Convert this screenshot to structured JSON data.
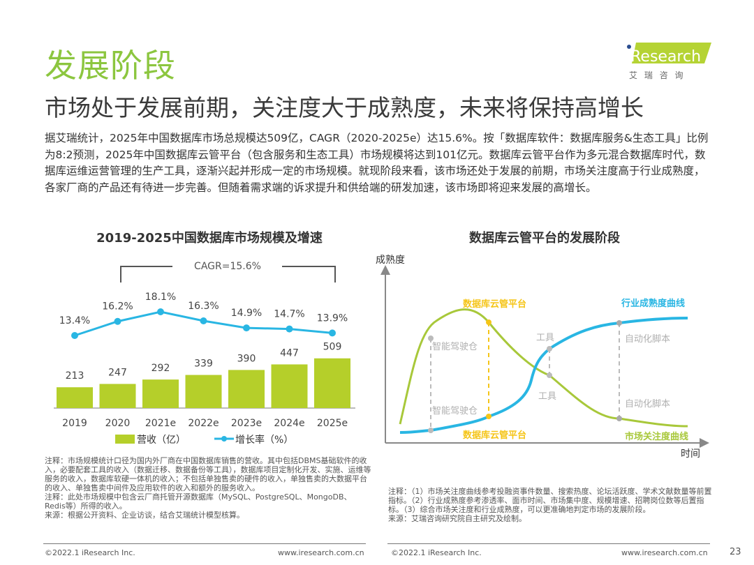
{
  "header": {
    "title": "发展阶段",
    "subtitle": "市场处于发展前期，关注度大于成熟度，未来将保持高增长",
    "logo_text": "iResearch",
    "logo_cn": "艾 瑞 咨 询",
    "brand_color": "#8cc63f"
  },
  "intro": "据艾瑞统计，2025年中国数据库市场总规模达509亿，CAGR（2020-2025e）达15.6%。按「数据库软件：数据库服务&生态工具」比例为8:2预测，2025年中国数据库云管平台（包含服务和生态工具）市场规模将达到101亿元。数据库云管平台作为多元混合数据库时代，数据库运维运营管理的生产工具，逐渐兴起并形成一定的市场规模。就现阶段来看，该市场还处于发展的前期，市场关注度高于行业成熟度，各家厂商的产品还有待进一步完善。但随着需求端的诉求提升和供给端的研发加速，该市场即将迎来发展的高增长。",
  "chart_data": [
    {
      "type": "bar",
      "title": "2019-2025中国数据库市场规模及增速",
      "categories": [
        "2019",
        "2020",
        "2021e",
        "2022e",
        "2023e",
        "2024e",
        "2025e"
      ],
      "series": [
        {
          "name": "营收（亿）",
          "type": "bar",
          "color": "#b5cf2a",
          "values": [
            213,
            247,
            292,
            339,
            390,
            447,
            509
          ],
          "labels": [
            "213",
            "247",
            "292",
            "339",
            "390",
            "447",
            "509"
          ]
        },
        {
          "name": "增长率（%）",
          "type": "line",
          "color": "#29b6e3",
          "values": [
            13.4,
            16.2,
            18.1,
            16.3,
            14.9,
            14.7,
            13.9
          ],
          "labels": [
            "13.4%",
            "16.2%",
            "18.1%",
            "16.3%",
            "14.9%",
            "14.7%",
            "13.9%"
          ]
        }
      ],
      "annotation": "CAGR=15.6%",
      "annotation_span": [
        "2020",
        "2025e"
      ],
      "legend_position": "bottom",
      "grid": false
    },
    {
      "type": "line",
      "title": "数据库云管平台的发展阶段",
      "ylabel": "成熟度",
      "xlabel": "时间",
      "series": [
        {
          "name": "市场关注度曲线",
          "color": "#a8c83a"
        },
        {
          "name": "行业成熟度曲线",
          "color": "#29b6e3"
        }
      ],
      "stages": [
        {
          "name": "智能驾驶仓",
          "upper_label": "智能驾驶仓",
          "lower_label": "智能驾驶仓"
        },
        {
          "name": "数据库云管平台",
          "upper_label": "数据库云管平台",
          "lower_label": "数据库云管平台",
          "color": "#f5c518"
        },
        {
          "name": "工具",
          "upper_label": "工具",
          "lower_label": "工具"
        },
        {
          "name": "自动化脚本",
          "upper_label": "自动化脚本",
          "lower_label": "自动化脚本"
        }
      ]
    }
  ],
  "notes": {
    "left": [
      "注释：市场规模统计口径为国内外厂商在中国数据库销售的营收。其中包括DBMS基础软件的收入，必要配套工具的收入（数据迁移、数据备份等工具），数据库项目定制化开发、实施、运维等服务的收入，数据库软硬一体机的收入；不包括单独售卖的硬件的收入，单独售卖的大数据平台的收入、单独售卖中间件及应用软件的收入和额外的服务收入。",
      "注释：此处市场规模中包含云厂商托管开源数据库（MySQL、PostgreSQL、MongoDB、Redis等）所得的收入。",
      "来源：根据公开资料、企业访谈，结合艾瑞统计模型核算。"
    ],
    "right": [
      "注释：（1）市场关注度曲线参考投融资事件数量、搜索热度、论坛活跃度、学术文献数量等前置指标。（2）行业成熟度参考渗透率、面市时间、市场集中度、规模增速、招聘岗位数等后置指标。（3）综合市场关注度和行业成熟度，可以更准确地判定市场的发展阶段。",
      "来源：艾瑞咨询研究院自主研究及绘制。"
    ]
  },
  "footer": {
    "left_copyright": "©2022.1 iResearch Inc.",
    "left_url": "www.iresearch.com.cn",
    "right_copyright": "©2022.1 iResearch Inc.",
    "right_url": "www.iresearch.com.cn",
    "page_number": "23"
  }
}
